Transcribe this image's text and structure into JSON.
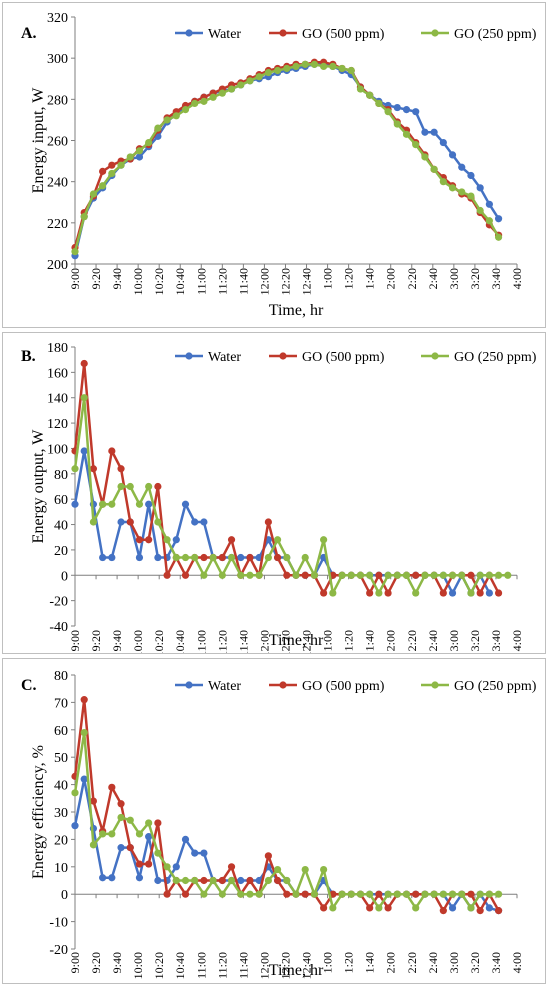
{
  "x_ticks": [
    "9:00",
    "9:20",
    "9:40",
    "10:00",
    "10:20",
    "10:40",
    "11:00",
    "11:20",
    "11:40",
    "12:00",
    "12:20",
    "12:40",
    "1:00",
    "1:20",
    "1:40",
    "2:00",
    "2:20",
    "2:40",
    "3:00",
    "3:20",
    "3:40",
    "4:00"
  ],
  "colors": {
    "Water": "#4472c4",
    "GO (500 ppm)": "#c0392b",
    "GO (250 ppm)": "#8db846"
  },
  "chart_data": [
    {
      "type": "line",
      "panel_label": "A.",
      "xlabel": "Time, hr",
      "ylabel": "Energy input, W",
      "ylim": [
        200,
        320
      ],
      "yticks": [
        200,
        220,
        240,
        260,
        280,
        300,
        320
      ],
      "legend": "top-right",
      "series": [
        {
          "name": "Water",
          "values": [
            204,
            223,
            232,
            237,
            243,
            248,
            251,
            252,
            257,
            262,
            269,
            273,
            276,
            279,
            281,
            283,
            284,
            285,
            287,
            289,
            290,
            291,
            293,
            294,
            295,
            296,
            297,
            297,
            296,
            294,
            292,
            286,
            282,
            279,
            277,
            276,
            275,
            274,
            264,
            264,
            259,
            253,
            247,
            243,
            237,
            229,
            222
          ]
        },
        {
          "name": "GO (500 ppm)",
          "values": [
            208,
            225,
            233,
            245,
            248,
            250,
            251,
            256,
            258,
            265,
            271,
            274,
            277,
            279,
            281,
            283,
            285,
            287,
            288,
            290,
            292,
            294,
            295,
            296,
            297,
            297,
            298,
            298,
            297,
            295,
            294,
            286,
            282,
            278,
            275,
            269,
            265,
            259,
            253,
            246,
            242,
            238,
            234,
            232,
            225,
            219,
            214
          ]
        },
        {
          "name": "GO (250 ppm)",
          "values": [
            206,
            223,
            234,
            238,
            244,
            248,
            252,
            255,
            259,
            266,
            270,
            272,
            275,
            278,
            279,
            281,
            283,
            285,
            287,
            289,
            291,
            293,
            294,
            295,
            296,
            297,
            297,
            296,
            296,
            295,
            294,
            285,
            282,
            278,
            274,
            268,
            263,
            258,
            252,
            246,
            240,
            237,
            235,
            233,
            226,
            221,
            213
          ]
        }
      ]
    },
    {
      "type": "line",
      "panel_label": "B.",
      "xlabel": "Time, hr",
      "ylabel": "Energy output, W",
      "ylim": [
        -40,
        180
      ],
      "yticks": [
        -40,
        -20,
        0,
        20,
        40,
        60,
        80,
        100,
        120,
        140,
        160,
        180
      ],
      "legend": "top-right",
      "series": [
        {
          "name": "Water",
          "values": [
            56,
            98,
            56,
            14,
            14,
            42,
            42,
            14,
            56,
            14,
            14,
            28,
            56,
            42,
            42,
            14,
            14,
            14,
            14,
            14,
            14,
            28,
            14,
            14,
            0,
            0,
            0,
            14,
            0,
            0,
            0,
            0,
            0,
            0,
            0,
            0,
            0,
            0,
            0,
            0,
            0,
            -14,
            0,
            -14,
            0,
            -14
          ]
        },
        {
          "name": "GO (500 ppm)",
          "values": [
            98,
            167,
            84,
            56,
            98,
            84,
            42,
            28,
            28,
            70,
            0,
            14,
            0,
            14,
            14,
            14,
            14,
            28,
            0,
            14,
            0,
            42,
            14,
            0,
            0,
            0,
            0,
            -14,
            0,
            0,
            0,
            0,
            -14,
            0,
            -14,
            0,
            0,
            0,
            0,
            0,
            -14,
            0,
            0,
            0,
            -14,
            0,
            -14
          ]
        },
        {
          "name": "GO (250 ppm)",
          "values": [
            84,
            140,
            42,
            56,
            56,
            70,
            70,
            56,
            70,
            42,
            28,
            14,
            14,
            14,
            0,
            14,
            0,
            14,
            0,
            0,
            0,
            14,
            28,
            14,
            0,
            14,
            0,
            28,
            -14,
            0,
            0,
            0,
            0,
            -14,
            0,
            0,
            0,
            -14,
            0,
            0,
            0,
            0,
            0,
            -14,
            0,
            0,
            0,
            0
          ]
        }
      ]
    },
    {
      "type": "line",
      "panel_label": "C.",
      "xlabel": "Time, hr",
      "ylabel": "Energy efficiency, %",
      "ylim": [
        -20,
        80
      ],
      "yticks": [
        -20,
        -10,
        0,
        10,
        20,
        30,
        40,
        50,
        60,
        70,
        80
      ],
      "legend": "top-right",
      "series": [
        {
          "name": "Water",
          "values": [
            25,
            42,
            24,
            6,
            6,
            17,
            17,
            6,
            21,
            5,
            5,
            10,
            20,
            15,
            15,
            5,
            5,
            5,
            5,
            5,
            5,
            10,
            5,
            5,
            0,
            0,
            0,
            5,
            0,
            0,
            0,
            0,
            0,
            0,
            0,
            0,
            0,
            0,
            0,
            0,
            0,
            -5,
            0,
            -5,
            0,
            -5,
            -6
          ]
        },
        {
          "name": "GO (500 ppm)",
          "values": [
            43,
            71,
            34,
            23,
            39,
            33,
            17,
            11,
            11,
            26,
            0,
            5,
            0,
            5,
            5,
            5,
            5,
            10,
            0,
            5,
            0,
            14,
            5,
            0,
            0,
            0,
            0,
            -5,
            0,
            0,
            0,
            0,
            -5,
            0,
            -5,
            0,
            0,
            0,
            0,
            0,
            -6,
            0,
            0,
            0,
            -6,
            0,
            -6
          ]
        },
        {
          "name": "GO (250 ppm)",
          "values": [
            37,
            59,
            18,
            22,
            22,
            28,
            27,
            22,
            26,
            15,
            10,
            5,
            5,
            5,
            0,
            5,
            0,
            5,
            0,
            0,
            0,
            5,
            9,
            5,
            0,
            9,
            0,
            9,
            -5,
            0,
            0,
            0,
            0,
            -5,
            0,
            0,
            0,
            -5,
            0,
            0,
            0,
            0,
            0,
            -5,
            0,
            0,
            0
          ]
        }
      ]
    }
  ]
}
